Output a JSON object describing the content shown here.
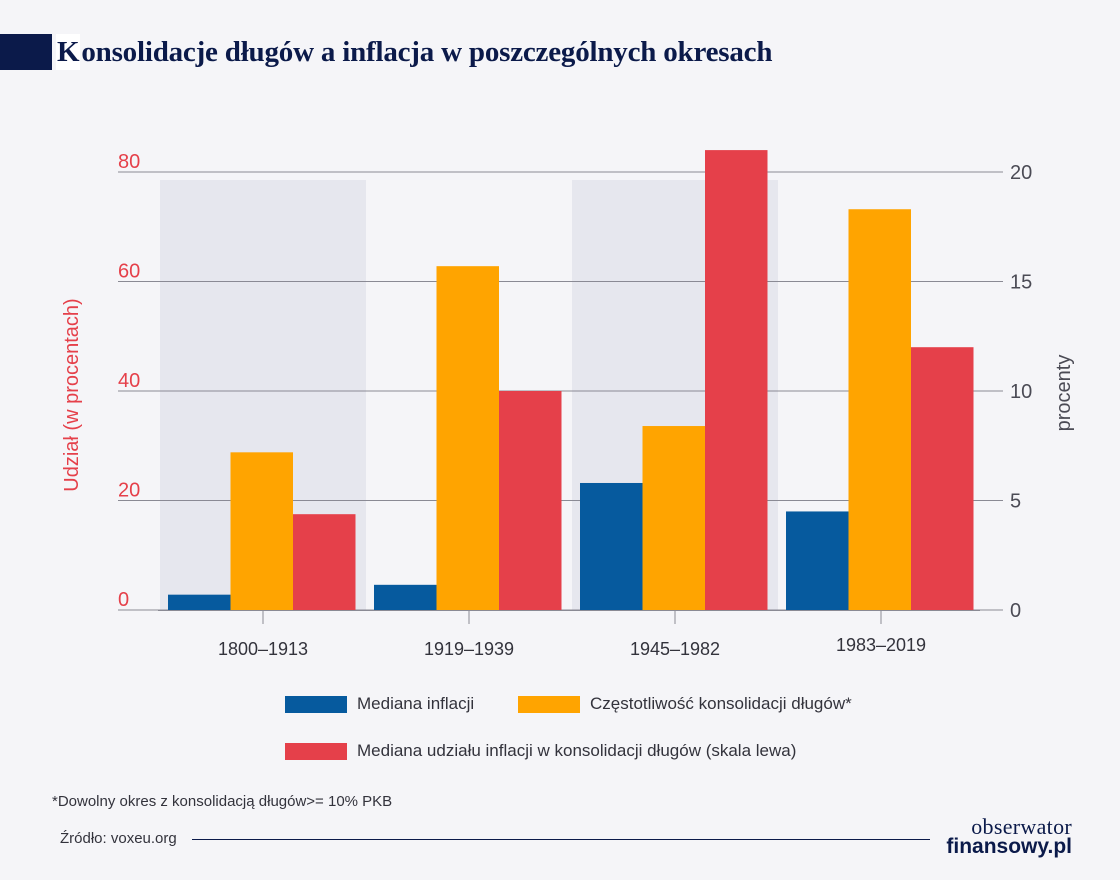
{
  "title": {
    "first_letter": "K",
    "rest": "onsolidacje długów a inflacja w poszczególnych okresach"
  },
  "chart_data": {
    "type": "bar",
    "categories": [
      "1800–1913",
      "1919–1939",
      "1945–1982",
      "1983–2019"
    ],
    "series": [
      {
        "name": "Mediana inflacji",
        "axis": "right",
        "color": "#065a9e",
        "values": [
          0.7,
          1.15,
          5.8,
          4.5
        ]
      },
      {
        "name": "Częstotliwość konsolidacji długów*",
        "axis": "right",
        "color": "#ffa400",
        "values": [
          7.2,
          15.7,
          8.4,
          18.3
        ]
      },
      {
        "name": "Mediana udziału inflacji w konsolidacji długów (skala lewa)",
        "axis": "left",
        "color": "#e5404a",
        "values": [
          17.5,
          40,
          84,
          48
        ]
      }
    ],
    "ylabel_left": "Udział (w procentach)",
    "ylabel_right": "procenty",
    "ylim_left": [
      0,
      80
    ],
    "ylim_right": [
      0,
      20
    ],
    "yticks_left": [
      0,
      20,
      40,
      60,
      80
    ],
    "yticks_right": [
      0,
      5,
      10,
      15,
      20
    ],
    "grid": true,
    "shaded_categories": [
      "1800–1913",
      "1945–1982"
    ],
    "legend_placement": "bottom"
  },
  "legend": {
    "item1": "Mediana inflacji",
    "item2": "Częstotliwość konsolidacji długów*",
    "item3": "Mediana udziału inflacji w konsolidacji długów (skala lewa)"
  },
  "colors": {
    "blue": "#065a9e",
    "orange": "#ffa400",
    "red": "#e5404a",
    "navy": "#0b1a4a"
  },
  "footnote": "*Dowolny okres z konsolidacją długów>= 10% PKB",
  "source": "Źródło: voxeu.org",
  "logo": {
    "top": "obserwator",
    "bottom": "finansowy.pl"
  }
}
